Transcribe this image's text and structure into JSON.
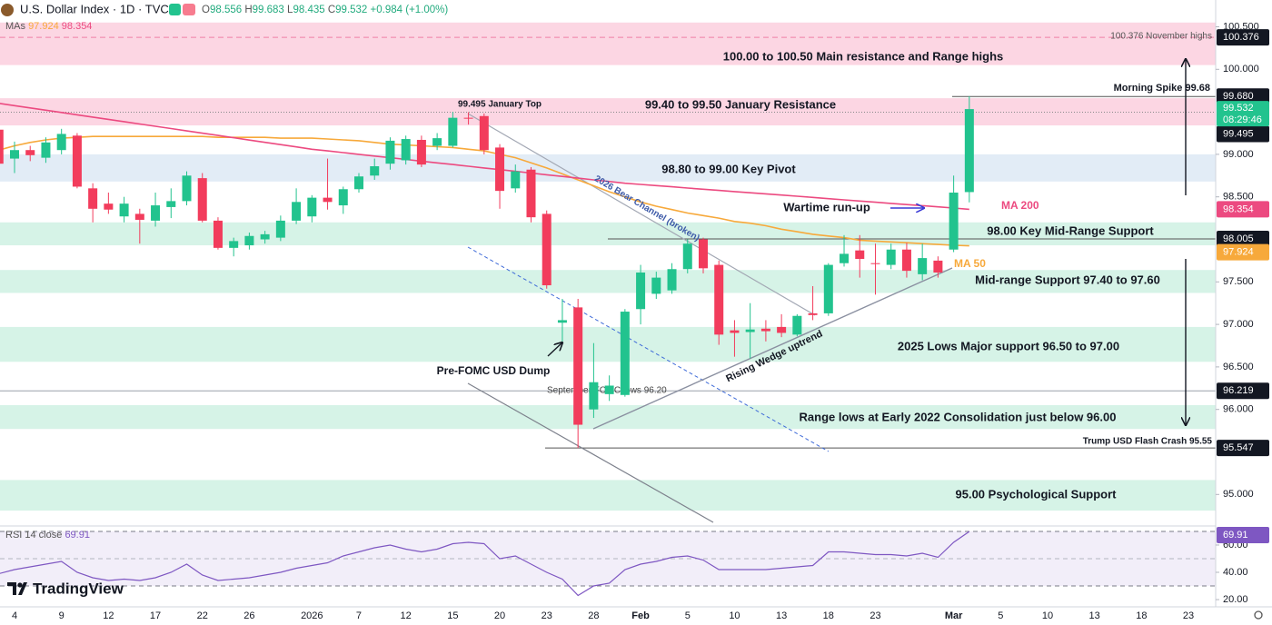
{
  "header": {
    "symbol_title": "U.S. Dollar Index · 1D · TVC",
    "ohlc_labels": [
      "O",
      "H",
      "L",
      "C"
    ],
    "change": "+0.984",
    "change_pct": "(+1.00%)",
    "mas_label": "MAs"
  },
  "branding": "TradingView",
  "chart_data": [
    {
      "type": "candlestick",
      "categories": [
        null,
        "4",
        null,
        null,
        "9",
        null,
        null,
        "12",
        null,
        null,
        "17",
        null,
        null,
        "22",
        null,
        null,
        "26",
        null,
        null,
        null,
        "2026",
        null,
        null,
        "7",
        null,
        null,
        "12",
        null,
        null,
        "15",
        null,
        null,
        "20",
        null,
        null,
        "23",
        null,
        null,
        "28",
        null,
        null,
        "Feb",
        null,
        null,
        "5",
        null,
        null,
        "10",
        null,
        null,
        "13",
        null,
        null,
        "18",
        null,
        null,
        "23",
        null,
        null,
        null,
        null,
        "Mar",
        null,
        null,
        "5",
        null,
        null,
        "10",
        null,
        null,
        "13",
        null,
        null,
        "18",
        null,
        null,
        "23"
      ],
      "open": [
        99.29,
        98.95,
        99.05,
        98.96,
        99.05,
        99.22,
        98.6,
        98.42,
        98.27,
        98.3,
        98.22,
        98.38,
        98.45,
        98.72,
        98.22,
        97.9,
        97.93,
        98.0,
        98.02,
        98.22,
        98.27,
        98.49,
        98.4,
        98.59,
        98.75,
        98.89,
        98.93,
        99.17,
        99.1,
        99.1,
        99.43,
        99.45,
        99.08,
        98.6,
        98.82,
        98.3,
        97.02,
        97.2,
        96.0,
        96.18,
        96.17,
        97.18,
        97.36,
        97.4,
        97.65,
        98.0,
        97.7,
        96.93,
        96.91,
        96.95,
        96.97,
        96.88,
        97.13,
        97.13,
        97.72,
        97.87,
        97.72,
        97.7,
        97.88,
        97.59,
        97.75,
        97.88,
        98.556,
        null,
        null,
        null,
        null,
        null,
        null,
        null,
        null,
        null,
        null,
        null,
        null,
        null,
        null
      ],
      "high": [
        99.33,
        99.15,
        99.1,
        99.2,
        99.3,
        99.25,
        98.66,
        98.55,
        98.5,
        98.36,
        98.55,
        98.6,
        98.8,
        98.78,
        98.26,
        98.02,
        98.08,
        98.1,
        98.28,
        98.6,
        98.52,
        98.95,
        98.62,
        98.78,
        98.95,
        99.2,
        99.22,
        99.22,
        99.25,
        99.5,
        99.495,
        99.48,
        99.12,
        98.88,
        98.85,
        98.34,
        97.3,
        97.3,
        96.78,
        96.4,
        97.18,
        97.7,
        97.62,
        97.72,
        98.0,
        98.02,
        97.75,
        97.05,
        97.25,
        97.05,
        97.12,
        97.12,
        97.45,
        97.72,
        98.05,
        98.05,
        97.95,
        97.95,
        97.96,
        97.95,
        97.8,
        98.75,
        99.683,
        null,
        null,
        null,
        null,
        null,
        null,
        null,
        null,
        null,
        null,
        null,
        null,
        null,
        null
      ],
      "low": [
        98.85,
        98.78,
        98.92,
        98.9,
        99.0,
        98.6,
        98.2,
        98.3,
        98.2,
        97.95,
        98.15,
        98.25,
        98.4,
        98.2,
        97.88,
        97.8,
        97.88,
        97.95,
        97.98,
        98.18,
        98.2,
        98.35,
        98.3,
        98.55,
        98.7,
        98.82,
        98.88,
        98.85,
        99.05,
        99.08,
        99.35,
        99.0,
        98.36,
        98.55,
        98.2,
        97.42,
        96.8,
        95.547,
        95.9,
        96.1,
        96.15,
        97.0,
        97.3,
        97.36,
        97.6,
        97.6,
        96.76,
        96.62,
        96.6,
        96.8,
        96.85,
        96.86,
        97.05,
        97.1,
        97.68,
        97.55,
        97.35,
        97.65,
        97.55,
        97.52,
        97.55,
        97.85,
        98.435,
        null,
        null,
        null,
        null,
        null,
        null,
        null,
        null,
        null,
        null,
        null,
        null,
        null,
        null
      ],
      "close": [
        98.89,
        99.05,
        98.99,
        99.14,
        99.24,
        98.62,
        98.36,
        98.35,
        98.42,
        98.23,
        98.4,
        98.45,
        98.75,
        98.22,
        97.9,
        97.98,
        98.04,
        98.06,
        98.22,
        98.44,
        98.49,
        98.44,
        98.59,
        98.74,
        98.86,
        99.16,
        99.18,
        98.88,
        99.19,
        99.43,
        99.42,
        99.05,
        98.57,
        98.8,
        98.26,
        97.46,
        97.05,
        95.82,
        96.32,
        96.28,
        97.15,
        97.61,
        97.55,
        97.65,
        97.95,
        97.66,
        96.88,
        96.9,
        96.94,
        96.92,
        96.9,
        97.1,
        97.11,
        97.7,
        97.83,
        97.77,
        97.71,
        97.88,
        97.63,
        97.78,
        97.61,
        98.55,
        99.532,
        null,
        null,
        null,
        null,
        null,
        null,
        null,
        null,
        null,
        null,
        null,
        null,
        null,
        null
      ],
      "up_color": "#22c38e",
      "down_color": "#f23c5c",
      "series": [
        {
          "name": "MA 50",
          "color": "#f7a93b",
          "values": [
            99.05,
            99.1,
            99.14,
            99.17,
            99.19,
            99.2,
            99.21,
            99.21,
            99.21,
            99.21,
            99.21,
            99.21,
            99.21,
            99.21,
            99.2,
            99.2,
            99.2,
            99.2,
            99.19,
            99.19,
            99.19,
            99.18,
            99.17,
            99.16,
            99.14,
            99.12,
            99.11,
            99.1,
            99.09,
            99.08,
            99.06,
            99.04,
            99.0,
            98.96,
            98.9,
            98.84,
            98.77,
            98.7,
            98.63,
            98.56,
            98.5,
            98.44,
            98.39,
            98.35,
            98.31,
            98.28,
            98.25,
            98.21,
            98.19,
            98.16,
            98.12,
            98.09,
            98.06,
            98.04,
            98.02,
            97.99,
            97.98,
            97.97,
            97.96,
            97.95,
            97.94,
            97.93,
            97.924,
            null,
            null,
            null,
            null,
            null,
            null,
            null,
            null,
            null,
            null,
            null,
            null,
            null,
            null
          ]
        },
        {
          "name": "MA 200",
          "color": "#ec4a80",
          "values": [
            99.6,
            99.573,
            99.546,
            99.519,
            99.492,
            99.465,
            99.438,
            99.411,
            99.384,
            99.357,
            99.33,
            99.303,
            99.276,
            99.249,
            99.222,
            99.195,
            99.168,
            99.141,
            99.114,
            99.087,
            99.06,
            99.04,
            99.02,
            99.0,
            98.98,
            98.96,
            98.94,
            98.92,
            98.9,
            98.88,
            98.86,
            98.84,
            98.82,
            98.8,
            98.78,
            98.76,
            98.74,
            98.72,
            98.7,
            98.68,
            98.66,
            98.646,
            98.632,
            98.618,
            98.604,
            98.59,
            98.576,
            98.562,
            98.548,
            98.535,
            98.521,
            98.507,
            98.493,
            98.479,
            98.465,
            98.451,
            98.437,
            98.423,
            98.409,
            98.396,
            98.382,
            98.368,
            98.354,
            null,
            null,
            null,
            null,
            null,
            null,
            null,
            null,
            null,
            null,
            null,
            null,
            null,
            null
          ]
        }
      ],
      "ylim": [
        94.64,
        100.58
      ],
      "yticks": [
        {
          "value": 100.5,
          "label": "100.500"
        },
        {
          "value": 100,
          "label": "100.000"
        },
        {
          "value": 99,
          "label": "99.000"
        },
        {
          "value": 98.5,
          "label": "98.500"
        },
        {
          "value": 97.5,
          "label": "97.500"
        },
        {
          "value": 97,
          "label": "97.000"
        },
        {
          "value": 96.5,
          "label": "96.500"
        },
        {
          "value": 96,
          "label": "96.000"
        },
        {
          "value": 95,
          "label": "95.000"
        }
      ],
      "grid": false,
      "zones": [
        {
          "from": 100.05,
          "to": 100.55,
          "color": "#fcd6e3"
        },
        {
          "from": 99.34,
          "to": 99.66,
          "color": "#fcd6e3"
        },
        {
          "from": 98.68,
          "to": 99.0,
          "color": "#e2ecf6"
        },
        {
          "from": 97.93,
          "to": 98.2,
          "color": "#d6f3e7"
        },
        {
          "from": 97.37,
          "to": 97.64,
          "color": "#d6f3e7"
        },
        {
          "from": 96.56,
          "to": 96.97,
          "color": "#d6f3e7"
        },
        {
          "from": 95.77,
          "to": 96.05,
          "color": "#d6f3e7"
        },
        {
          "from": 94.81,
          "to": 95.17,
          "color": "#d6f3e7"
        }
      ],
      "price_labels": [
        {
          "value": 100.376,
          "label": "100.376"
        },
        {
          "value": 99.68,
          "label": "99.680"
        },
        {
          "value": 99.495,
          "label": "99.495"
        },
        {
          "value": 98.005,
          "label": "98.005"
        },
        {
          "value": 96.219,
          "label": "96.219"
        },
        {
          "value": 95.547,
          "label": "95.547"
        }
      ],
      "countdown": "08:29:46",
      "annotations": [
        "100.376 November highs",
        "100.00 to 100.50 Main resistance and Range highs",
        "99.495 January Top",
        "99.40 to 99.50 January Resistance",
        "Morning Spike 99.68",
        "98.80 to 99.00 Key Pivot",
        "2026 Bear Channel (broken)",
        "Wartime run-up",
        "98.00 Key Mid-Range Support",
        "Mid-range Support 97.40 to 97.60",
        "2025 Lows Major support 96.50 to 97.00",
        "Pre-FOMC USD Dump",
        "Rising Wedge uptrend",
        "September FOMC lows 96.20",
        "Range lows at Early 2022 Consolidation just below 96.00",
        "Trump USD Flash Crash 95.55",
        "95.00 Psychological Support"
      ]
    },
    {
      "type": "line",
      "name": "RSI 14 close",
      "color": "#7e57c2",
      "values": [
        39,
        42,
        44,
        46,
        48,
        40,
        36,
        34,
        35,
        34,
        36,
        40,
        46,
        38,
        34,
        35,
        36,
        38,
        40,
        43,
        45,
        47,
        52,
        55,
        58,
        60,
        57,
        55,
        57,
        61,
        62,
        61,
        50,
        52,
        46,
        40,
        35,
        23,
        30,
        32,
        42,
        46,
        48,
        51,
        52,
        49,
        42,
        42,
        42,
        42,
        43,
        44,
        45,
        55,
        55,
        54,
        53,
        53,
        52,
        54,
        51,
        62,
        69.91,
        null,
        null,
        null,
        null,
        null,
        null,
        null,
        null,
        null,
        null,
        null,
        null,
        null,
        null
      ],
      "ylim": [
        14.7,
        73.3
      ],
      "yticks": [
        {
          "value": 60,
          "label": "60.00"
        },
        {
          "value": 40,
          "label": "40.00"
        },
        {
          "value": 20,
          "label": "20.00"
        }
      ],
      "band": [
        30,
        70
      ],
      "midline": 50
    }
  ]
}
